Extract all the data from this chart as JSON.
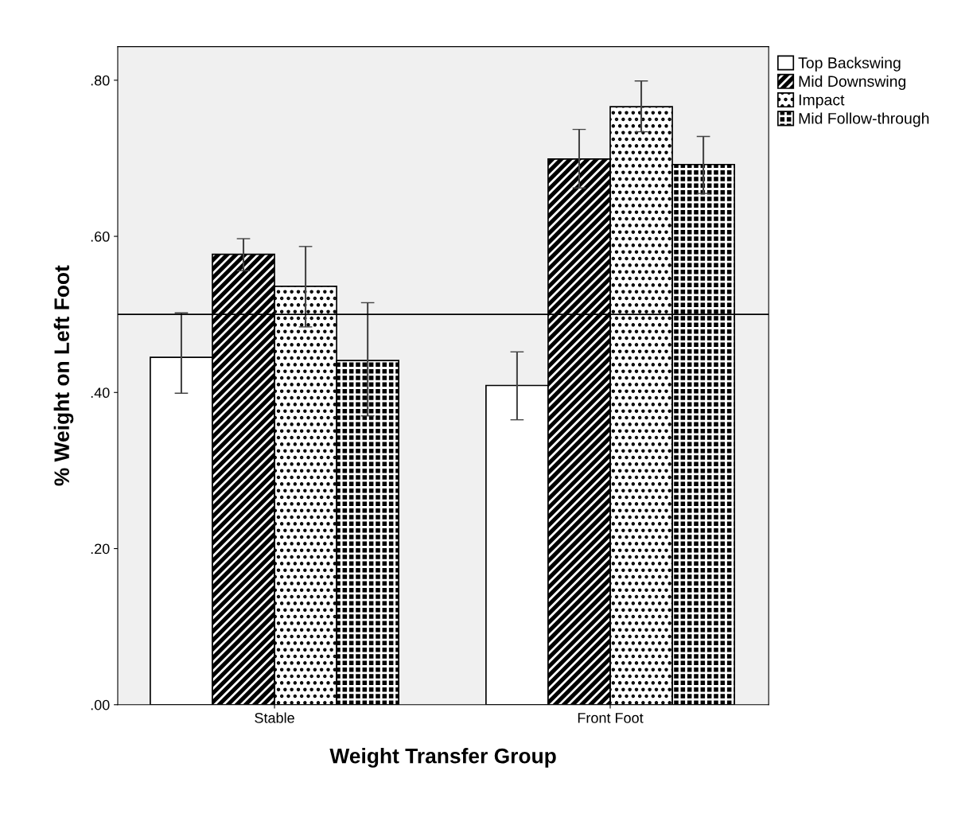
{
  "chart_data": {
    "type": "bar",
    "xlabel": "Weight Transfer Group",
    "ylabel": "% Weight on Left Foot",
    "categories": [
      "Stable",
      "Front Foot"
    ],
    "series": [
      {
        "name": "Top Backswing",
        "color": "#ffffff",
        "values": [
          0.445,
          0.409
        ],
        "errors": [
          [
            0.399,
            0.502
          ],
          [
            0.365,
            0.452
          ]
        ]
      },
      {
        "name": "Mid Downswing",
        "color": "#000000",
        "values": [
          0.577,
          0.699
        ],
        "errors": [
          [
            0.556,
            0.597
          ],
          [
            0.662,
            0.737
          ]
        ]
      },
      {
        "name": "Impact",
        "color": "#ffffff",
        "values": [
          0.536,
          0.766
        ],
        "errors": [
          [
            0.484,
            0.587
          ],
          [
            0.734,
            0.799
          ]
        ]
      },
      {
        "name": "Mid Follow-through",
        "color": "#000000",
        "values": [
          0.441,
          0.692
        ],
        "errors": [
          [
            0.37,
            0.515
          ],
          [
            0.655,
            0.728
          ]
        ]
      }
    ],
    "ylim": [
      0,
      0.843
    ],
    "yticks": [
      {
        "value": 0,
        "label": ".00"
      },
      {
        "value": 0.2,
        "label": ".20"
      },
      {
        "value": 0.4,
        "label": ".40"
      },
      {
        "value": 0.6,
        "label": ".60"
      },
      {
        "value": 0.8,
        "label": ".80"
      }
    ],
    "ref_lines": [
      {
        "axis": "y",
        "value": 0.5,
        "color": "#000000"
      }
    ],
    "grid": false,
    "legend": "top right"
  }
}
